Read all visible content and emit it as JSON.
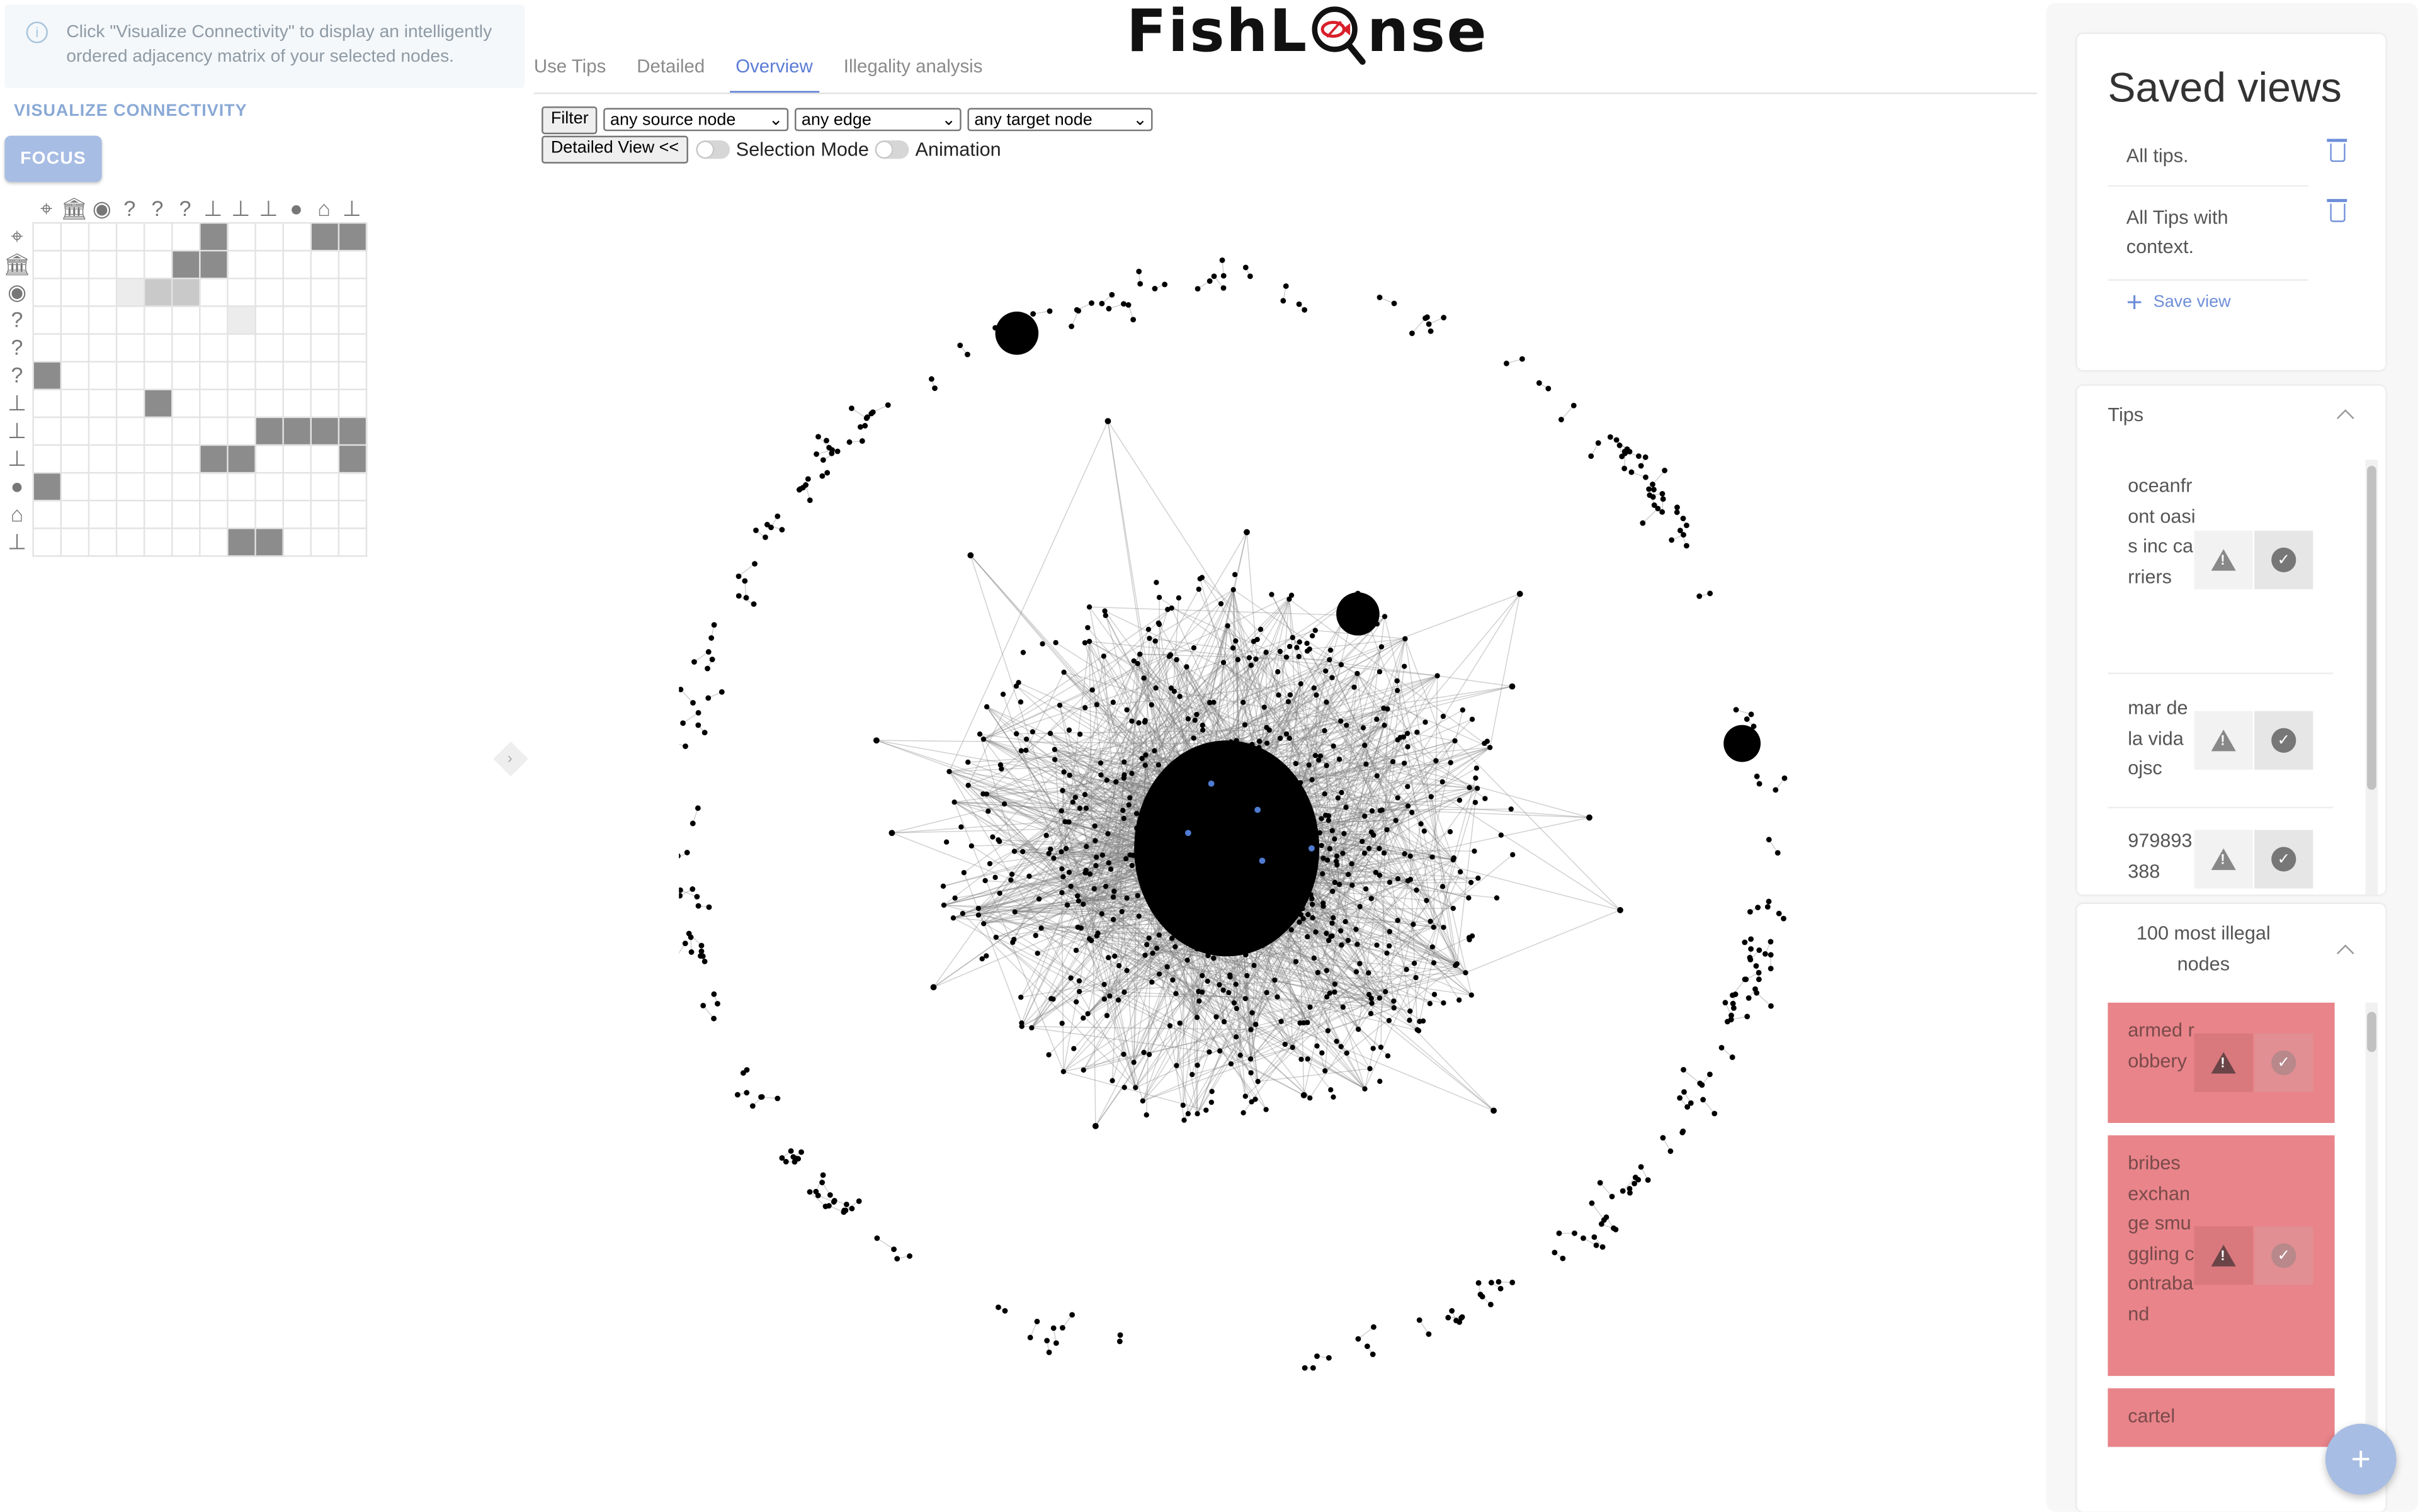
{
  "left": {
    "info_text": "Click \"Visualize Connectivity\" to display an intelligently ordered adjacency matrix of your selected nodes.",
    "visualize_label": "VISUALIZE CONNECTIVITY",
    "focus_label": "FOCUS",
    "matrix_header_icons": [
      "location-icon",
      "bank-icon",
      "eye-icon",
      "question-icon",
      "question-icon",
      "question-icon",
      "org-icon",
      "org-icon",
      "org-icon",
      "person-icon",
      "vessel-icon",
      "org-icon"
    ],
    "matrix_side_icons": [
      "location-icon",
      "bank-icon",
      "eye-icon",
      "question-icon",
      "question-icon",
      "question-icon",
      "org-icon",
      "org-icon",
      "org-icon",
      "person-icon",
      "vessel-icon",
      "org-icon"
    ],
    "question_glyph": "?"
  },
  "tabs": [
    {
      "label": "Use Tips"
    },
    {
      "label": "Detailed"
    },
    {
      "label": "Overview"
    },
    {
      "label": "Illegality analysis"
    }
  ],
  "logo": {
    "left": "FishL",
    "right": "nse"
  },
  "controls": {
    "filter_label": "Filter",
    "source_select": "any source node",
    "edge_select": "any edge",
    "target_select": "any target node",
    "detailed_view_label": "Detailed View <<",
    "selection_mode_label": "Selection Mode",
    "animation_label": "Animation"
  },
  "saved_views": {
    "title": "Saved views",
    "items": [
      "All tips.",
      "All Tips with context."
    ],
    "save_label": "Save view"
  },
  "tips": {
    "title": "Tips",
    "items": [
      "oceanfront oasis inc carriers",
      "mar de la vida ojsc",
      "979893388"
    ]
  },
  "illegal": {
    "title": "100 most illegal nodes",
    "items": [
      "armed robbery",
      "bribes exchange smuggling contraband",
      "cartel"
    ]
  },
  "colors": {
    "accent": "#5b7bd5",
    "illegal": "#e8848a",
    "focus": "#a8bde3"
  }
}
